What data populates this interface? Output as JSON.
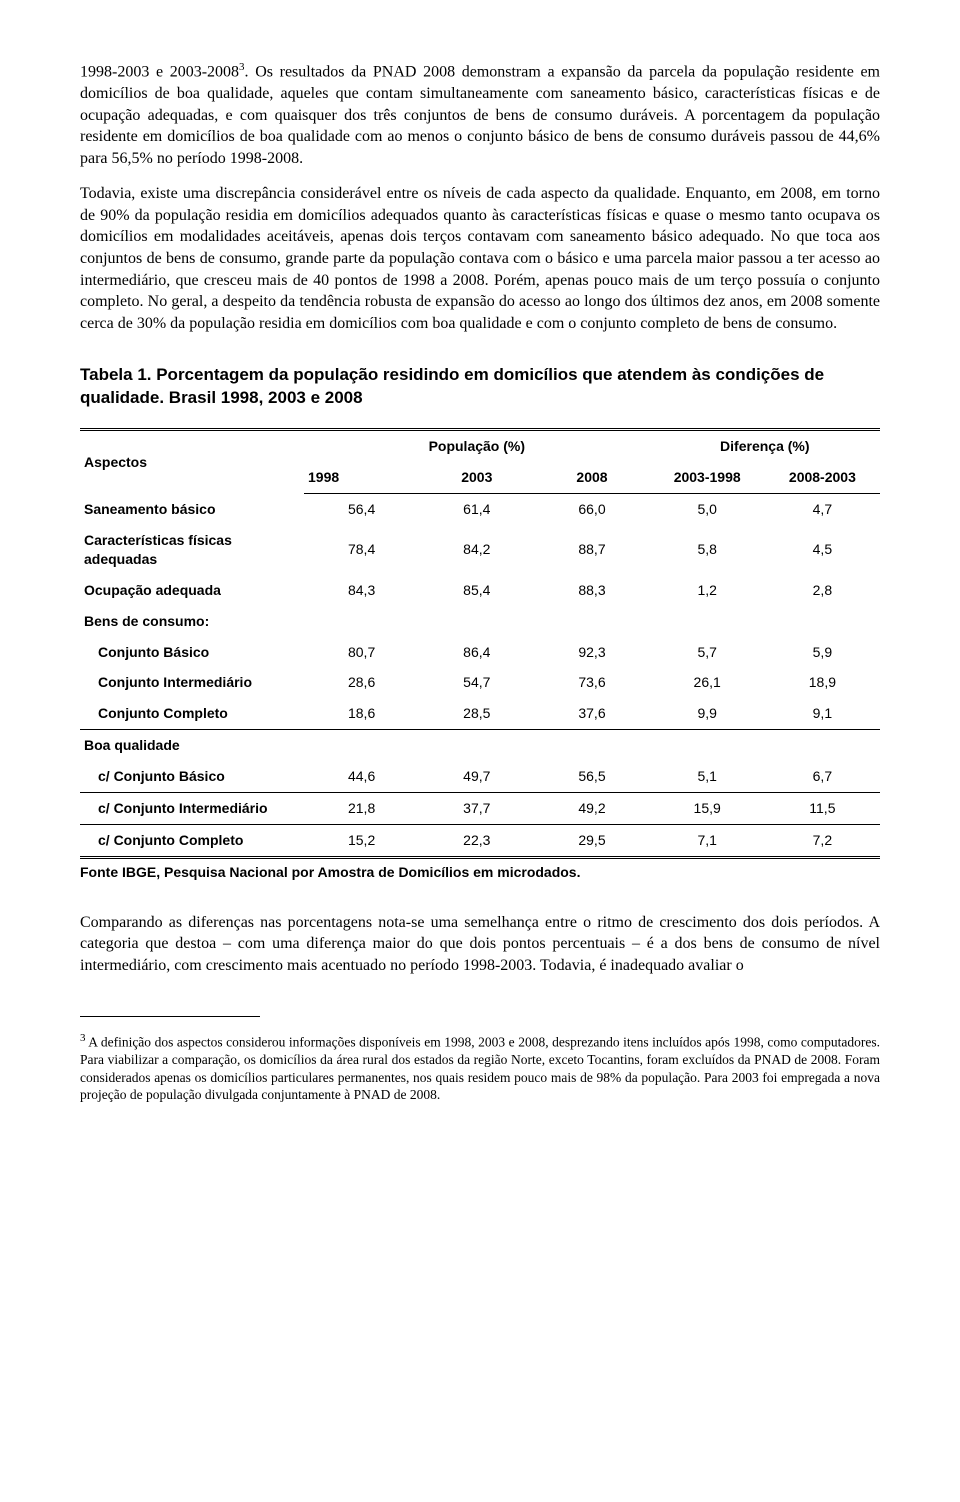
{
  "paragraphs": {
    "p1a": "1998-2003 e 2003-2008",
    "p1sup": "3",
    "p1b": ". Os resultados da PNAD 2008 demonstram a expansão da parcela da população residente em domicílios de boa qualidade, aqueles que contam simultaneamente com saneamento básico, características físicas e de ocupação adequadas, e com quaisquer dos três conjuntos de bens de consumo duráveis. A porcentagem da população residente em domicílios de boa qualidade com ao menos o conjunto básico de bens de consumo duráveis passou de 44,6% para 56,5% no período 1998-2008.",
    "p2": "Todavia, existe uma discrepância considerável entre os níveis de cada aspecto da qualidade. Enquanto, em 2008, em torno de 90% da população residia em domicílios adequados quanto às características físicas e quase o mesmo tanto ocupava os domicílios em modalidades aceitáveis, apenas dois terços contavam com saneamento básico adequado. No que toca aos conjuntos de bens de consumo, grande parte da população contava com o básico e uma parcela maior passou a ter acesso ao intermediário, que cresceu mais de 40 pontos de 1998 a 2008. Porém, apenas pouco mais de um terço possuía o conjunto completo. No geral, a despeito da tendência robusta de expansão do acesso ao longo dos últimos dez anos, em 2008 somente cerca de 30% da população residia em domicílios com boa qualidade e com o conjunto completo de bens de consumo.",
    "p3": "Comparando as diferenças nas porcentagens nota-se uma semelhança entre o ritmo de crescimento dos dois períodos. A categoria que destoa – com uma diferença maior do que dois pontos percentuais – é a dos bens de consumo de nível intermediário, com crescimento mais acentuado no período 1998-2003. Todavia, é inadequado avaliar o"
  },
  "table": {
    "title": "Tabela 1. Porcentagem da população residindo em domicílios que atendem às condições de qualidade. Brasil 1998, 2003 e 2008",
    "header": {
      "aspectos": "Aspectos",
      "pop": "População (%)",
      "dif": "Diferença (%)",
      "y1998": "1998",
      "y2003": "2003",
      "y2008": "2008",
      "d1": "2003-1998",
      "d2": "2008-2003"
    },
    "rows": {
      "r0": {
        "label": "Saneamento básico",
        "c": [
          "56,4",
          "61,4",
          "66,0",
          "5,0",
          "4,7"
        ]
      },
      "r1": {
        "label": "Características físicas adequadas",
        "c": [
          "78,4",
          "84,2",
          "88,7",
          "5,8",
          "4,5"
        ]
      },
      "r2": {
        "label": "Ocupação adequada",
        "c": [
          "84,3",
          "85,4",
          "88,3",
          "1,2",
          "2,8"
        ]
      },
      "bensHeader": "Bens de consumo:",
      "r3": {
        "label": "Conjunto Básico",
        "c": [
          "80,7",
          "86,4",
          "92,3",
          "5,7",
          "5,9"
        ]
      },
      "r4": {
        "label": "Conjunto Intermediário",
        "c": [
          "28,6",
          "54,7",
          "73,6",
          "26,1",
          "18,9"
        ]
      },
      "r5": {
        "label": "Conjunto Completo",
        "c": [
          "18,6",
          "28,5",
          "37,6",
          "9,9",
          "9,1"
        ]
      },
      "boaHeader": "Boa qualidade",
      "r6": {
        "label": "c/ Conjunto Básico",
        "c": [
          "44,6",
          "49,7",
          "56,5",
          "5,1",
          "6,7"
        ]
      },
      "r7": {
        "label": "c/ Conjunto Intermediário",
        "c": [
          "21,8",
          "37,7",
          "49,2",
          "15,9",
          "11,5"
        ]
      },
      "r8": {
        "label": "c/ Conjunto Completo",
        "c": [
          "15,2",
          "22,3",
          "29,5",
          "7,1",
          "7,2"
        ]
      }
    },
    "source": "Fonte IBGE, Pesquisa Nacional por Amostra de Domicílios em microdados."
  },
  "footnote": {
    "num": "3",
    "text": " A definição dos aspectos considerou informações disponíveis em 1998, 2003 e 2008, desprezando itens incluídos após 1998, como computadores. Para viabilizar a comparação, os domicílios da área rural dos estados da região Norte, exceto Tocantins, foram excluídos da PNAD de 2008. Foram considerados apenas os domicílios particulares permanentes, nos quais residem pouco mais de 98% da população. Para 2003 foi empregada a nova projeção de população divulgada conjuntamente à PNAD de 2008."
  }
}
